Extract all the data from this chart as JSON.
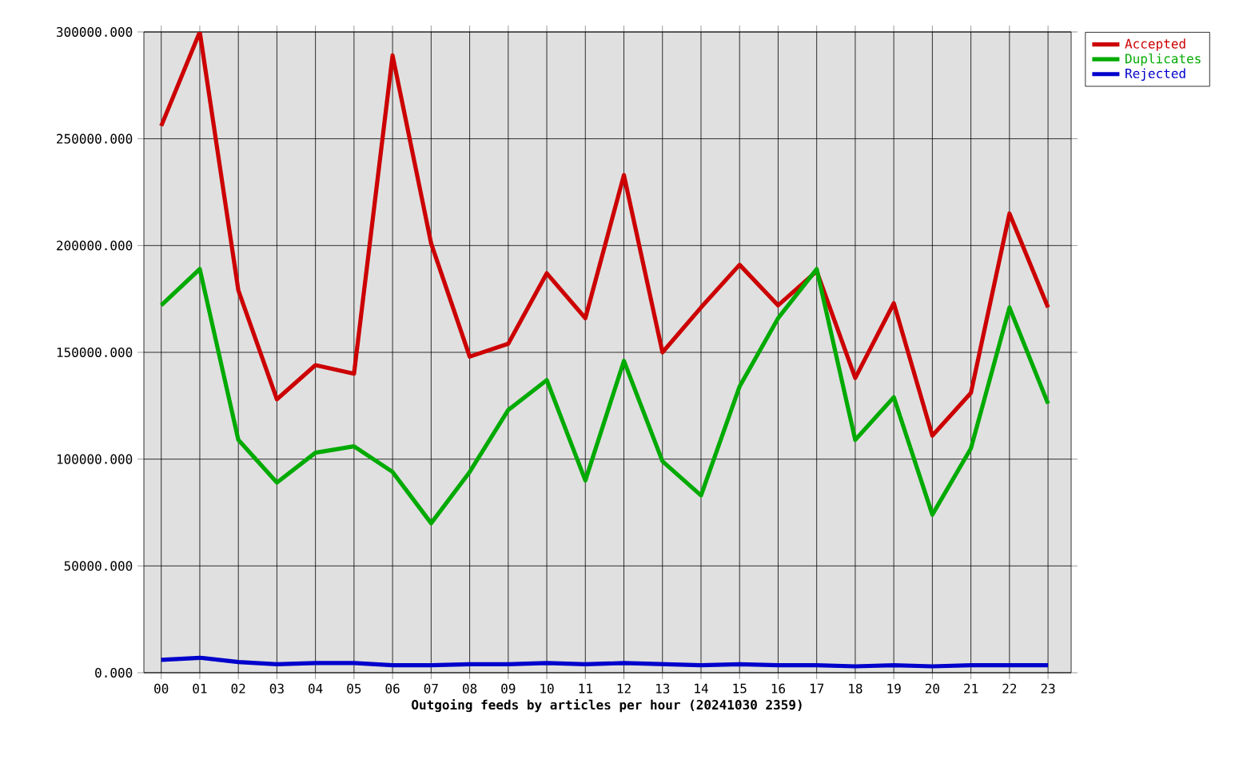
{
  "chart_data": {
    "type": "line",
    "xlabel": "Outgoing feeds by articles per hour (20241030 2359)",
    "categories": [
      "00",
      "01",
      "02",
      "03",
      "04",
      "05",
      "06",
      "07",
      "08",
      "09",
      "10",
      "11",
      "12",
      "13",
      "14",
      "15",
      "16",
      "17",
      "18",
      "19",
      "20",
      "21",
      "22",
      "23"
    ],
    "series": [
      {
        "name": "Accepted",
        "color": "#cc0000",
        "values": [
          256000,
          300000,
          179000,
          128000,
          144000,
          140000,
          289000,
          201000,
          148000,
          154000,
          187000,
          166000,
          233000,
          150000,
          171000,
          191000,
          172000,
          188000,
          138000,
          173000,
          111000,
          131000,
          215000,
          171000
        ]
      },
      {
        "name": "Duplicates",
        "color": "#00aa00",
        "values": [
          172000,
          189000,
          109000,
          89000,
          103000,
          106000,
          94000,
          70000,
          94000,
          123000,
          137000,
          90000,
          146000,
          99000,
          83000,
          134000,
          166000,
          189000,
          109000,
          129000,
          74000,
          105000,
          171000,
          126000
        ]
      },
      {
        "name": "Rejected",
        "color": "#0000cc",
        "values": [
          6000,
          7000,
          5000,
          4000,
          4500,
          4500,
          3500,
          3500,
          4000,
          4000,
          4500,
          4000,
          4500,
          4000,
          3500,
          4000,
          3500,
          3500,
          3000,
          3500,
          3000,
          3500,
          3500,
          3500
        ]
      }
    ],
    "ylim": [
      0,
      300000
    ],
    "yticks": [
      {
        "value": 0,
        "label": "0.000"
      },
      {
        "value": 50000,
        "label": "50000.000"
      },
      {
        "value": 100000,
        "label": "100000.000"
      },
      {
        "value": 150000,
        "label": "150000.000"
      },
      {
        "value": 200000,
        "label": "200000.000"
      },
      {
        "value": 250000,
        "label": "250000.000"
      },
      {
        "value": 300000,
        "label": "300000.000"
      }
    ],
    "grid": true,
    "legend": "top right",
    "line_style": "solid"
  }
}
